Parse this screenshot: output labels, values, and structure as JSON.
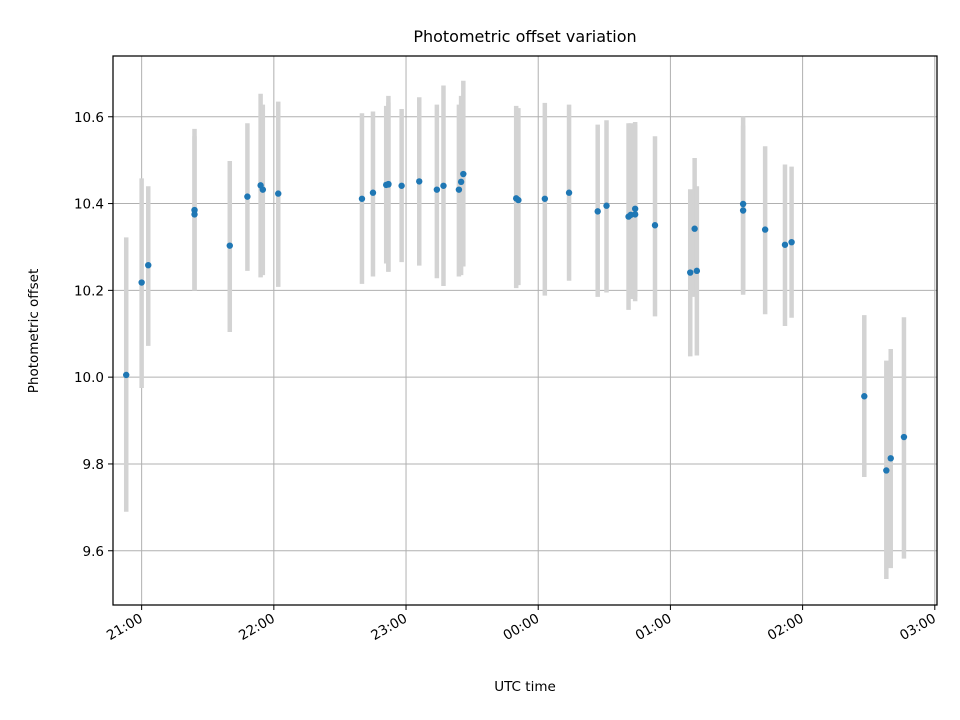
{
  "chart_data": {
    "type": "scatter",
    "title": "Photometric offset variation",
    "xlabel": "UTC time",
    "ylabel": "Photometric offset",
    "x_tick_labels": [
      "21:00",
      "22:00",
      "23:00",
      "00:00",
      "01:00",
      "02:00",
      "03:00"
    ],
    "y_tick_labels": [
      "9.6",
      "9.8",
      "10.0",
      "10.2",
      "10.4",
      "10.6"
    ],
    "x_ticks": [
      "21:00",
      "22:00",
      "23:00",
      "00:00",
      "01:00",
      "02:00",
      "03:00"
    ],
    "y_ticks": [
      9.6,
      9.8,
      10.0,
      10.2,
      10.4,
      10.6
    ],
    "xlim": [
      "20:47",
      "03:01"
    ],
    "ylim": [
      9.475,
      10.74
    ],
    "grid": true,
    "colors": {
      "point": "#1f77b4",
      "error_bar": "#d3d3d3",
      "grid": "#b0b0b0"
    },
    "series": [
      {
        "x": [
          "20:53",
          "21:00",
          "21:03",
          "21:24",
          "21:24",
          "21:40",
          "21:48",
          "21:54",
          "21:55",
          "22:02",
          "22:40",
          "22:45",
          "22:51",
          "22:52",
          "22:52",
          "22:58",
          "23:06",
          "23:14",
          "23:17",
          "23:24",
          "23:25",
          "23:26",
          "23:50",
          "23:51",
          "24:03",
          "24:14",
          "24:27",
          "24:31",
          "24:41",
          "24:42",
          "24:44",
          "24:44",
          "24:53",
          "25:09",
          "25:11",
          "25:12",
          "25:33",
          "25:33",
          "25:43",
          "25:52",
          "25:55",
          "26:28",
          "26:38",
          "26:40",
          "26:46"
        ],
        "y": [
          10.005,
          10.218,
          10.258,
          10.375,
          10.385,
          10.303,
          10.416,
          10.442,
          10.432,
          10.423,
          10.411,
          10.425,
          10.443,
          10.445,
          10.444,
          10.441,
          10.451,
          10.432,
          10.441,
          10.432,
          10.45,
          10.468,
          10.412,
          10.408,
          10.411,
          10.425,
          10.382,
          10.395,
          10.37,
          10.374,
          10.375,
          10.388,
          10.35,
          10.241,
          10.342,
          10.245,
          10.399,
          10.384,
          10.34,
          10.305,
          10.311,
          9.956,
          9.785,
          9.813,
          9.862
        ],
        "y_low": [
          9.69,
          9.975,
          10.072,
          10.2,
          10.2,
          10.104,
          10.245,
          10.23,
          10.235,
          10.208,
          10.215,
          10.232,
          10.262,
          10.243,
          10.243,
          10.265,
          10.257,
          10.228,
          10.21,
          10.232,
          10.235,
          10.255,
          10.205,
          10.212,
          10.188,
          10.222,
          10.185,
          10.195,
          10.155,
          10.18,
          10.175,
          10.185,
          10.14,
          10.048,
          10.185,
          10.05,
          10.19,
          10.195,
          10.145,
          10.118,
          10.137,
          9.77,
          9.535,
          9.56,
          9.582
        ],
        "y_high": [
          10.322,
          10.458,
          10.44,
          10.555,
          10.572,
          10.498,
          10.585,
          10.653,
          10.628,
          10.635,
          10.608,
          10.612,
          10.625,
          10.648,
          10.633,
          10.618,
          10.645,
          10.628,
          10.672,
          10.628,
          10.648,
          10.683,
          10.625,
          10.62,
          10.632,
          10.628,
          10.582,
          10.592,
          10.585,
          10.585,
          10.582,
          10.588,
          10.555,
          10.433,
          10.505,
          10.44,
          10.6,
          10.58,
          10.532,
          10.49,
          10.485,
          10.143,
          10.038,
          10.065,
          10.138
        ]
      }
    ]
  }
}
